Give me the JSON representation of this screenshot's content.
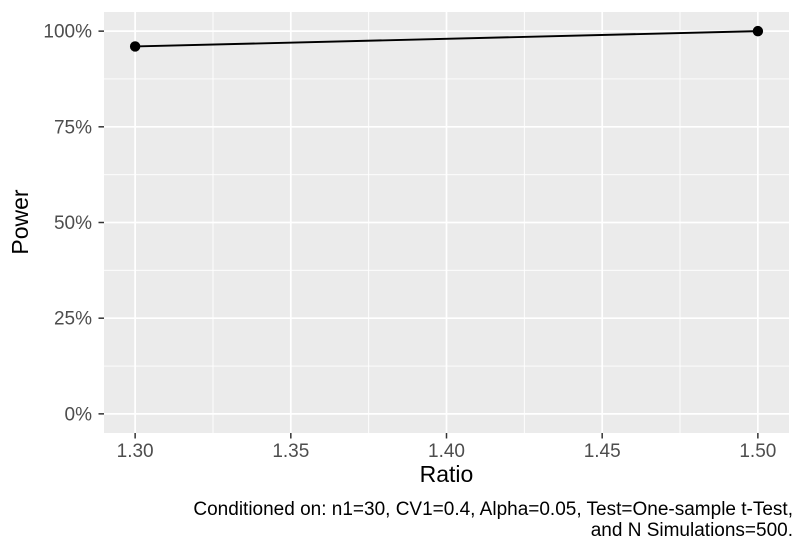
{
  "chart_data": {
    "type": "line",
    "title": "",
    "xlabel": "Ratio",
    "ylabel": "Power",
    "series": [
      {
        "name": "Power",
        "x": [
          1.3,
          1.5
        ],
        "y": [
          0.96,
          1.0
        ]
      }
    ],
    "x_ticks": [
      {
        "value": 1.3,
        "label": "1.30"
      },
      {
        "value": 1.35,
        "label": "1.35"
      },
      {
        "value": 1.4,
        "label": "1.40"
      },
      {
        "value": 1.45,
        "label": "1.45"
      },
      {
        "value": 1.5,
        "label": "1.50"
      }
    ],
    "y_ticks": [
      {
        "value": 0.0,
        "label": "0%"
      },
      {
        "value": 0.25,
        "label": "25%"
      },
      {
        "value": 0.5,
        "label": "50%"
      },
      {
        "value": 0.75,
        "label": "75%"
      },
      {
        "value": 1.0,
        "label": "100%"
      }
    ],
    "x_minor": [
      1.325,
      1.375,
      1.425,
      1.475
    ],
    "y_minor": [
      0.125,
      0.375,
      0.625,
      0.875
    ],
    "xlim": [
      1.29,
      1.51
    ],
    "ylim": [
      -0.05,
      1.05
    ],
    "grid": true,
    "legend": "none",
    "caption": {
      "line1": "Conditioned on: n1=30, CV1=0.4, Alpha=0.05, Test=One-sample t-Test,",
      "line2": "and N Simulations=500."
    },
    "colors": {
      "figure_background": "#FFFFFF",
      "panel_background": "#EBEBEB",
      "gridline": "#FFFFFF",
      "line": "#000000",
      "point": "#000000",
      "tick_mark": "#333333",
      "tick_label": "#4D4D4D",
      "axis_title": "#000000",
      "caption_text": "#000000"
    }
  }
}
